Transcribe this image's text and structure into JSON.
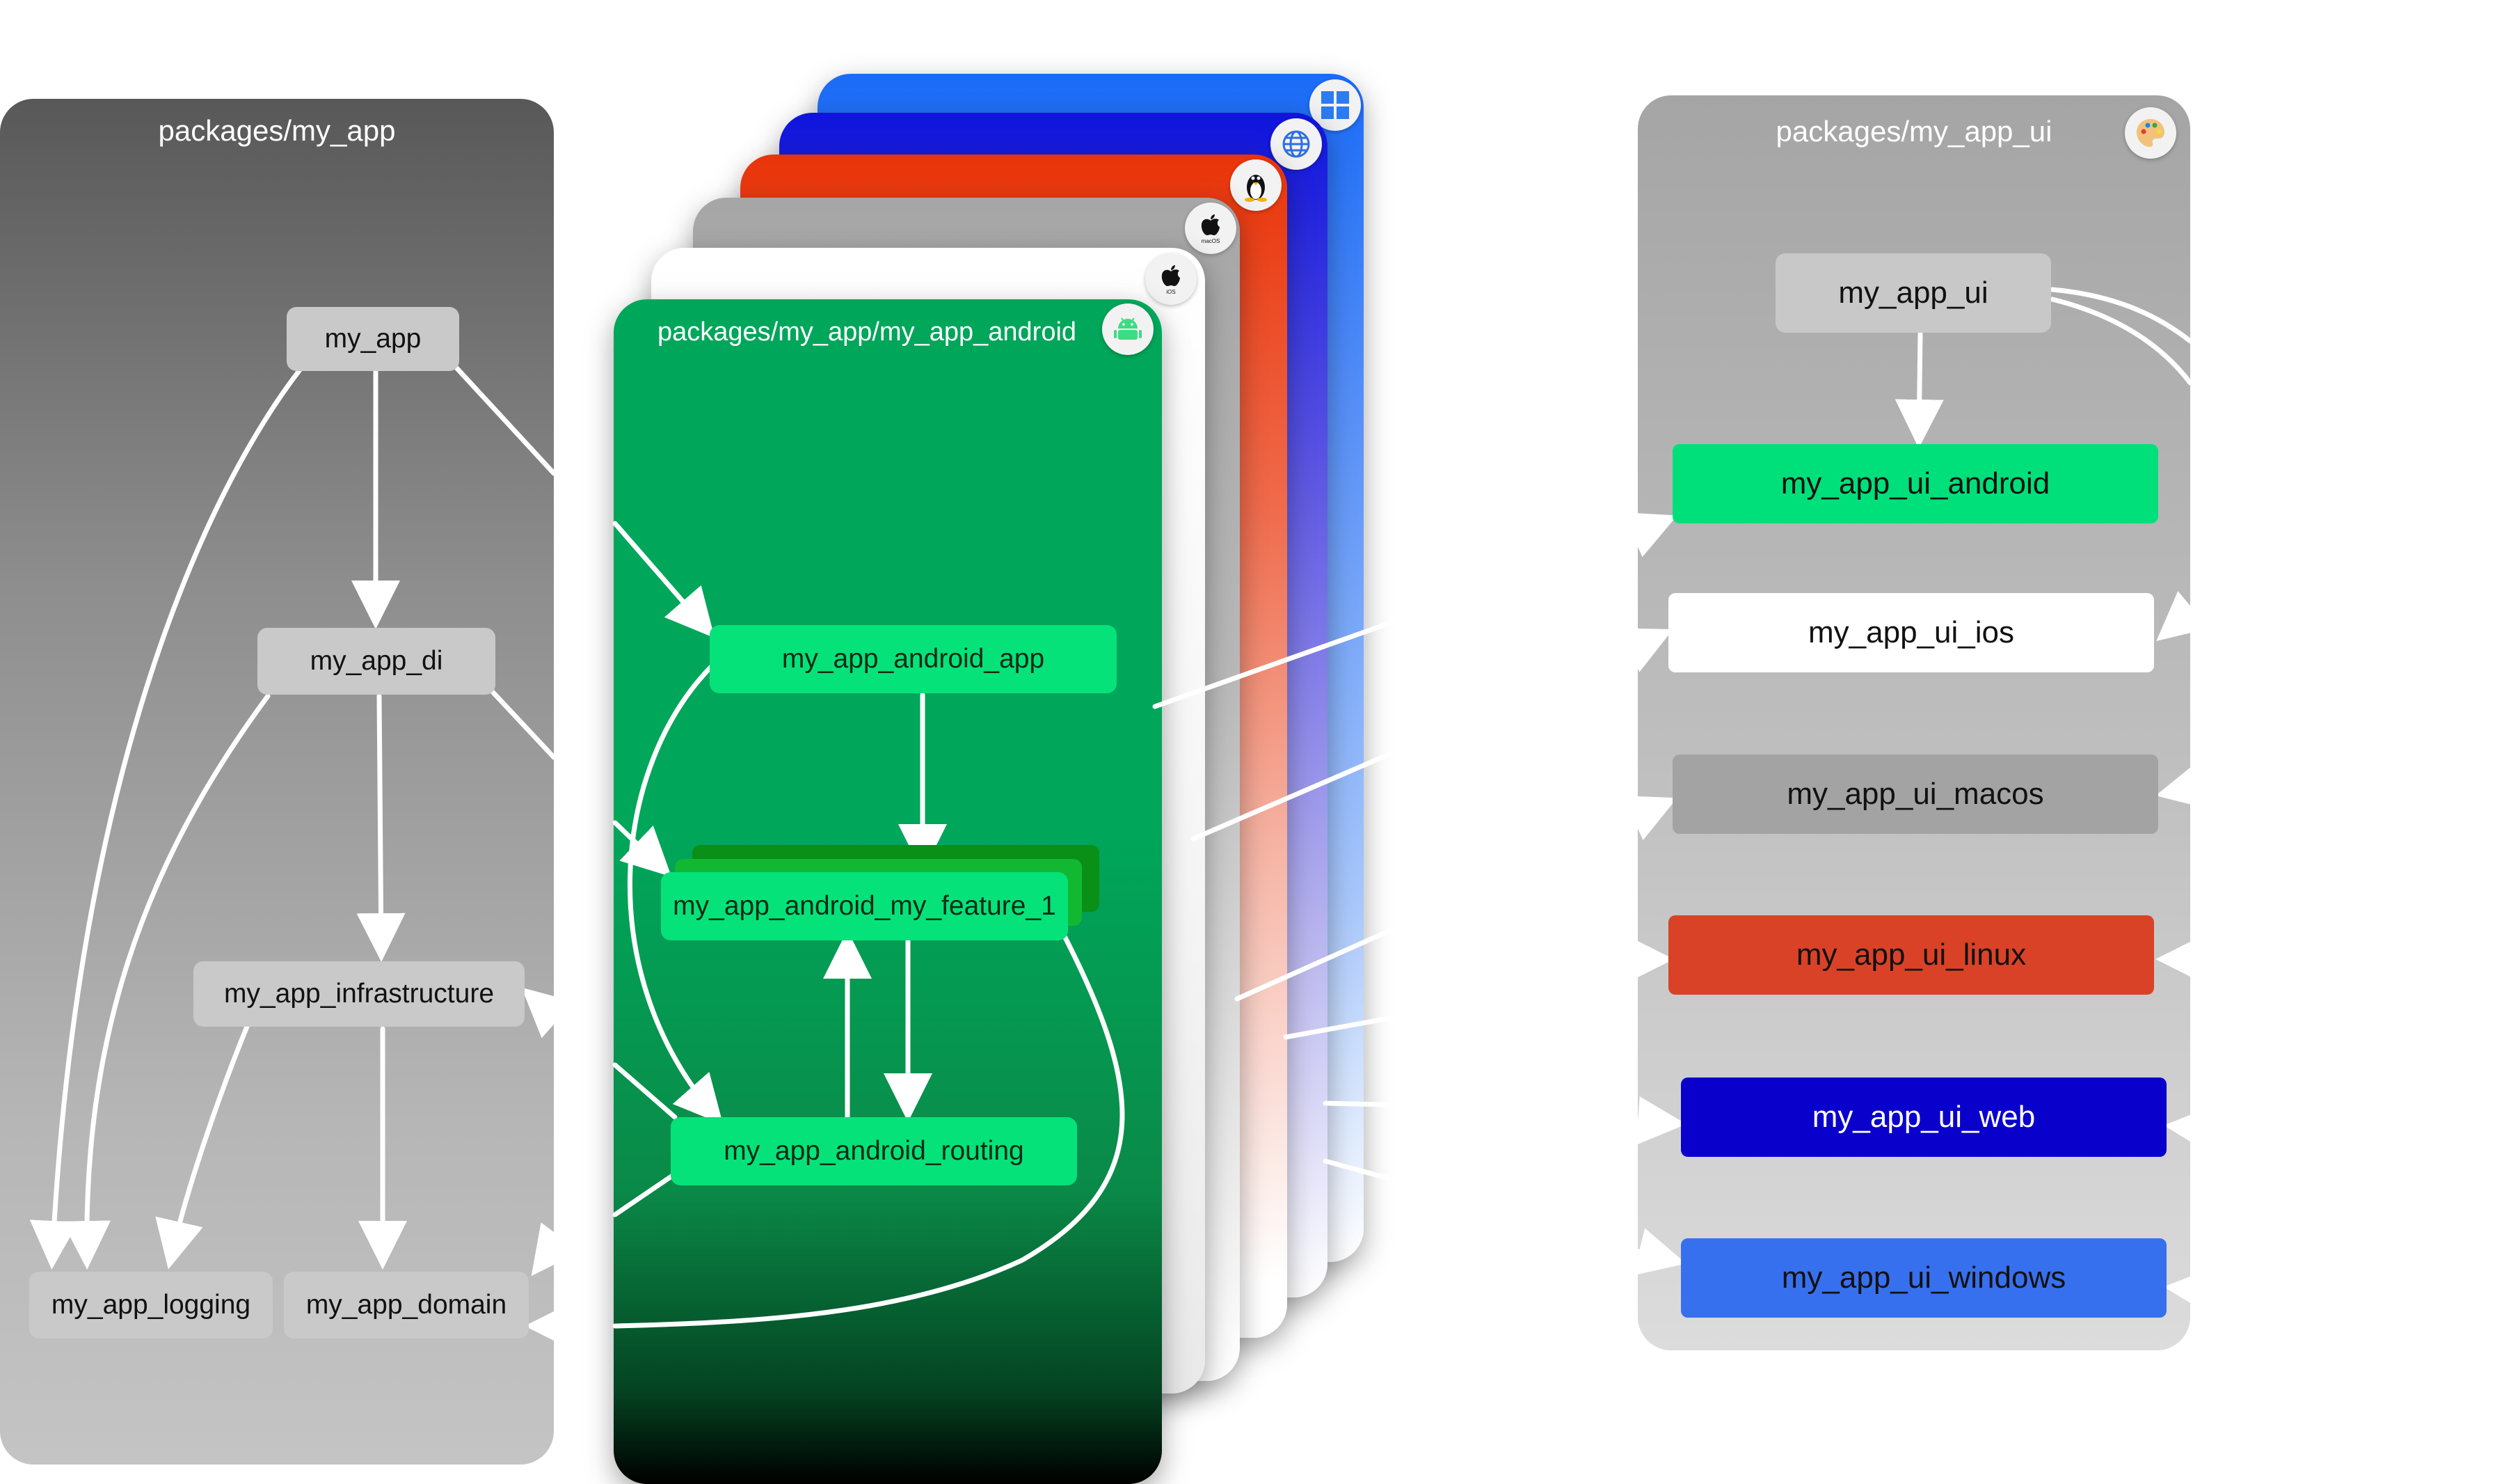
{
  "left_panel": {
    "title": "packages/my_app",
    "nodes": {
      "my_app": "my_app",
      "my_app_di": "my_app_di",
      "my_app_infrastructure": "my_app_infrastructure",
      "my_app_logging": "my_app_logging",
      "my_app_domain": "my_app_domain"
    }
  },
  "android_panel": {
    "title": "packages/my_app/my_app_android",
    "icon": "android-icon",
    "nodes": {
      "app": "my_app_android_app",
      "feature": "my_app_android_my_feature_1",
      "routing": "my_app_android_routing"
    }
  },
  "platform_cards": [
    {
      "platform": "ios",
      "icon": "apple-ios-icon",
      "icon_label": "iOS",
      "color": "#ffffff"
    },
    {
      "platform": "macos",
      "icon": "apple-macos-icon",
      "icon_label": "macOS",
      "color": "#a6a6a6"
    },
    {
      "platform": "linux",
      "icon": "linux-penguin-icon",
      "color": "#e8380d"
    },
    {
      "platform": "web",
      "icon": "globe-icon",
      "color": "#1019e0"
    },
    {
      "platform": "windows",
      "icon": "windows-icon",
      "color": "#1f6cf5"
    }
  ],
  "ui_panel": {
    "title": "packages/my_app_ui",
    "icon": "palette-icon",
    "nodes": {
      "ui": "my_app_ui",
      "android": "my_app_ui_android",
      "ios": "my_app_ui_ios",
      "macos": "my_app_ui_macos",
      "linux": "my_app_ui_linux",
      "web": "my_app_ui_web",
      "windows": "my_app_ui_windows"
    },
    "colors": {
      "android": "#00e07a",
      "ios": "#ffffff",
      "macos": "#a3a3a3",
      "linux": "#d94227",
      "web": "#0a00cc",
      "windows": "#3770ee"
    }
  }
}
